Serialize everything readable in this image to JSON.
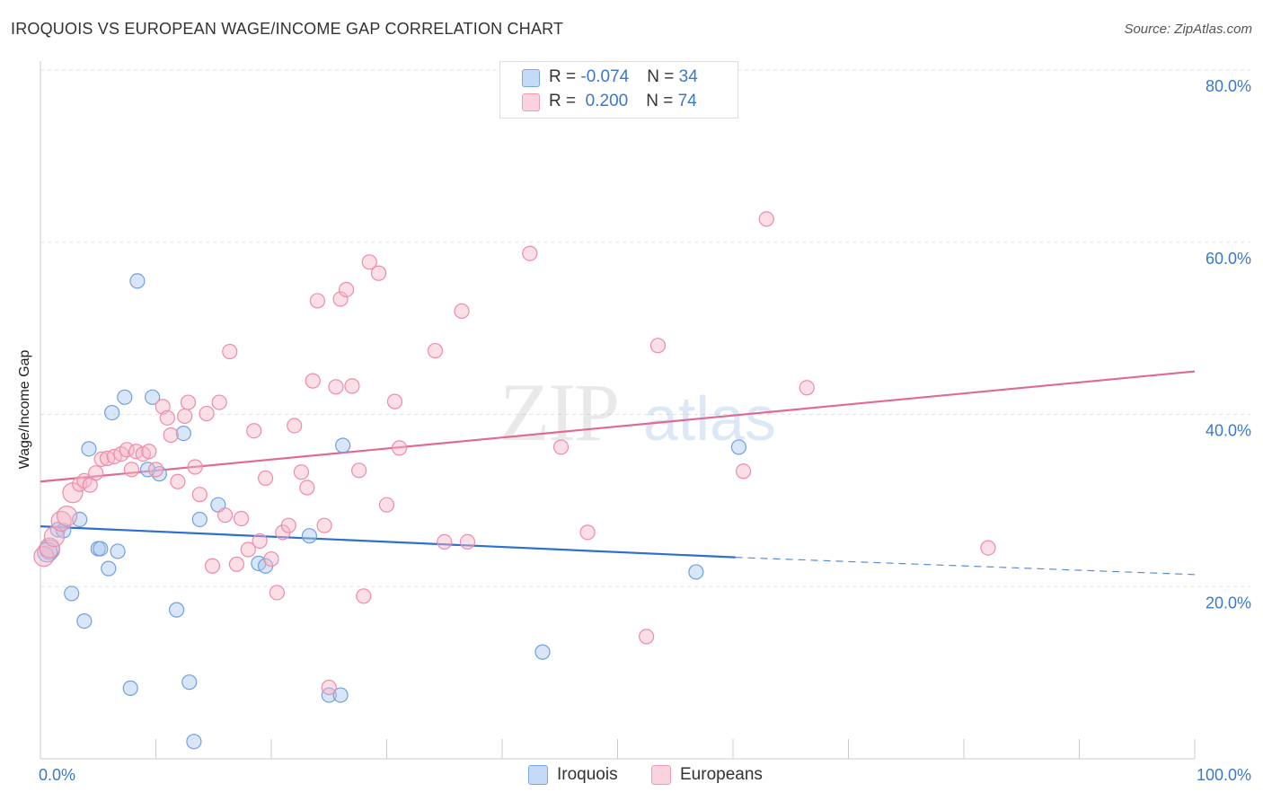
{
  "title": "IROQUOIS VS EUROPEAN WAGE/INCOME GAP CORRELATION CHART",
  "source": "Source: ZipAtlas.com",
  "watermark": {
    "zip": "ZIP",
    "atlas": "atlas"
  },
  "legend": {
    "rows": [
      {
        "r_label": "R = ",
        "r_value": "-0.074",
        "n_label": "N = ",
        "n_value": "34",
        "color": "#a9c8f0"
      },
      {
        "r_label": "R = ",
        "r_value": " 0.200",
        "n_label": "N = ",
        "n_value": "74",
        "color": "#f5b8c8"
      }
    ]
  },
  "bottom_legend": [
    {
      "label": "Iroquois",
      "color": "#a9c8f0"
    },
    {
      "label": "Europeans",
      "color": "#f5b8c8"
    }
  ],
  "chart_data": {
    "type": "scatter",
    "ylabel": "Wage/Income Gap",
    "xlim": [
      0,
      100
    ],
    "ylim": [
      0,
      80
    ],
    "x_tick_labels": [
      "0.0%",
      "100.0%"
    ],
    "y_ticks": [
      20,
      40,
      60,
      80
    ],
    "y_tick_labels": [
      "20.0%",
      "40.0%",
      "60.0%",
      "80.0%"
    ],
    "grid": true,
    "series": [
      {
        "name": "Iroquois",
        "color": "#6fa0e0",
        "fill": "#a9c8f0",
        "line_color": "#2f6fd0",
        "trend": {
          "x0": 0,
          "y0": 27.0,
          "x1": 60.2,
          "y1": 23.4,
          "dash_x1": 100,
          "dash_y1": 21.4
        },
        "points": [
          [
            0.8,
            24.3
          ],
          [
            1.5,
            26.6
          ],
          [
            2.0,
            26.5
          ],
          [
            2.7,
            19.2
          ],
          [
            3.4,
            27.8
          ],
          [
            3.8,
            16.0
          ],
          [
            4.2,
            36.0
          ],
          [
            5.0,
            24.4
          ],
          [
            5.2,
            24.4
          ],
          [
            5.9,
            22.1
          ],
          [
            6.2,
            40.2
          ],
          [
            6.7,
            24.1
          ],
          [
            7.3,
            42.0
          ],
          [
            7.8,
            8.2
          ],
          [
            8.4,
            55.5
          ],
          [
            9.3,
            33.6
          ],
          [
            9.7,
            42.0
          ],
          [
            10.3,
            33.1
          ],
          [
            11.8,
            17.3
          ],
          [
            12.4,
            37.8
          ],
          [
            12.9,
            8.9
          ],
          [
            13.8,
            27.8
          ],
          [
            15.4,
            29.5
          ],
          [
            13.3,
            2.0
          ],
          [
            18.9,
            22.7
          ],
          [
            19.5,
            22.4
          ],
          [
            23.3,
            25.9
          ],
          [
            25.0,
            7.4
          ],
          [
            26.0,
            7.4
          ],
          [
            26.2,
            36.4
          ],
          [
            43.5,
            12.4
          ],
          [
            56.8,
            21.7
          ],
          [
            60.5,
            36.2
          ],
          [
            0.6,
            24.0
          ]
        ]
      },
      {
        "name": "Europeans",
        "color": "#f08aa8",
        "fill": "#f5b8c8",
        "line_color": "#e06a94",
        "trend": {
          "x0": 0,
          "y0": 32.2,
          "x1": 100,
          "y1": 45.0
        },
        "points": [
          [
            0.3,
            23.5
          ],
          [
            0.8,
            24.5
          ],
          [
            1.2,
            25.8
          ],
          [
            1.8,
            27.6
          ],
          [
            2.3,
            28.2
          ],
          [
            2.8,
            30.9
          ],
          [
            3.4,
            31.9
          ],
          [
            3.8,
            32.3
          ],
          [
            4.3,
            31.8
          ],
          [
            4.8,
            33.2
          ],
          [
            5.3,
            34.8
          ],
          [
            5.8,
            34.9
          ],
          [
            6.4,
            35.1
          ],
          [
            7.0,
            35.4
          ],
          [
            7.5,
            35.9
          ],
          [
            7.9,
            33.6
          ],
          [
            8.3,
            35.7
          ],
          [
            8.9,
            35.4
          ],
          [
            9.4,
            35.7
          ],
          [
            10.0,
            33.6
          ],
          [
            10.6,
            40.9
          ],
          [
            11.0,
            39.6
          ],
          [
            11.3,
            37.6
          ],
          [
            11.9,
            32.2
          ],
          [
            12.5,
            39.8
          ],
          [
            12.8,
            41.4
          ],
          [
            13.4,
            33.9
          ],
          [
            13.8,
            30.7
          ],
          [
            14.4,
            40.1
          ],
          [
            14.9,
            22.4
          ],
          [
            15.5,
            41.4
          ],
          [
            16.0,
            28.3
          ],
          [
            16.4,
            47.3
          ],
          [
            17.0,
            22.6
          ],
          [
            17.4,
            27.9
          ],
          [
            18.0,
            24.3
          ],
          [
            18.5,
            38.1
          ],
          [
            19.0,
            25.3
          ],
          [
            19.5,
            32.6
          ],
          [
            20.0,
            23.2
          ],
          [
            20.5,
            19.3
          ],
          [
            21.0,
            26.3
          ],
          [
            21.5,
            27.1
          ],
          [
            22.0,
            38.7
          ],
          [
            22.6,
            33.3
          ],
          [
            23.1,
            31.5
          ],
          [
            23.6,
            43.9
          ],
          [
            24.0,
            53.2
          ],
          [
            24.6,
            27.1
          ],
          [
            25.0,
            8.3
          ],
          [
            25.6,
            43.2
          ],
          [
            26.0,
            53.4
          ],
          [
            26.5,
            54.5
          ],
          [
            27.0,
            43.3
          ],
          [
            27.6,
            33.5
          ],
          [
            28.0,
            18.9
          ],
          [
            28.5,
            57.7
          ],
          [
            29.3,
            56.4
          ],
          [
            30.0,
            29.5
          ],
          [
            30.7,
            41.5
          ],
          [
            31.1,
            36.1
          ],
          [
            34.2,
            47.4
          ],
          [
            35.0,
            25.2
          ],
          [
            36.5,
            52.0
          ],
          [
            37.0,
            25.2
          ],
          [
            42.4,
            58.7
          ],
          [
            45.1,
            36.2
          ],
          [
            47.4,
            26.3
          ],
          [
            52.5,
            14.2
          ],
          [
            53.5,
            48.0
          ],
          [
            60.9,
            33.4
          ],
          [
            62.9,
            62.7
          ],
          [
            66.4,
            43.1
          ],
          [
            82.1,
            24.5
          ]
        ]
      }
    ]
  }
}
